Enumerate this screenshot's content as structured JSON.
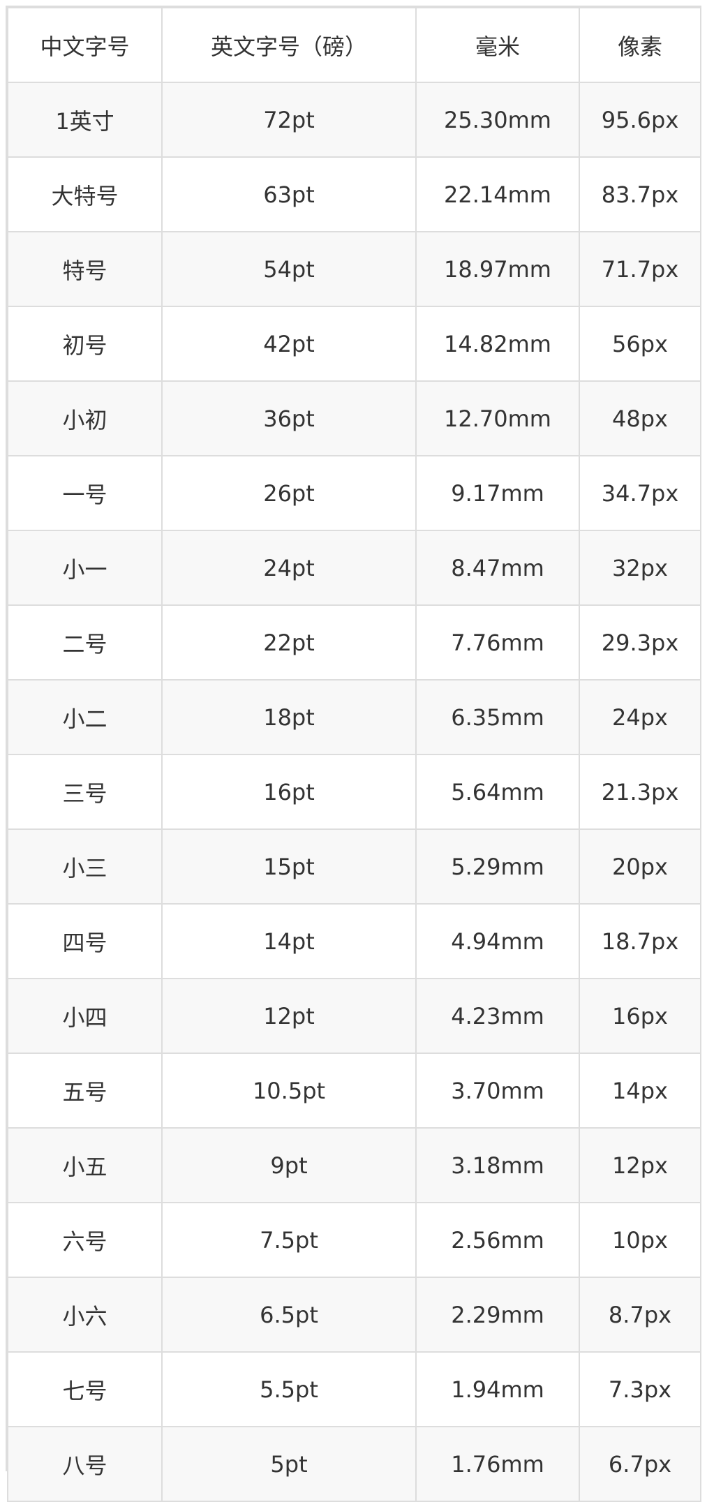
{
  "table": {
    "headers": [
      "中文字号",
      "英文字号（磅）",
      "毫米",
      "像素"
    ],
    "rows": [
      [
        "1英寸",
        "72pt",
        "25.30mm",
        "95.6px"
      ],
      [
        "大特号",
        "63pt",
        "22.14mm",
        "83.7px"
      ],
      [
        "特号",
        "54pt",
        "18.97mm",
        "71.7px"
      ],
      [
        "初号",
        "42pt",
        "14.82mm",
        "56px"
      ],
      [
        "小初",
        "36pt",
        "12.70mm",
        "48px"
      ],
      [
        "一号",
        "26pt",
        "9.17mm",
        "34.7px"
      ],
      [
        "小一",
        "24pt",
        "8.47mm",
        "32px"
      ],
      [
        "二号",
        "22pt",
        "7.76mm",
        "29.3px"
      ],
      [
        "小二",
        "18pt",
        "6.35mm",
        "24px"
      ],
      [
        "三号",
        "16pt",
        "5.64mm",
        "21.3px"
      ],
      [
        "小三",
        "15pt",
        "5.29mm",
        "20px"
      ],
      [
        "四号",
        "14pt",
        "4.94mm",
        "18.7px"
      ],
      [
        "小四",
        "12pt",
        "4.23mm",
        "16px"
      ],
      [
        "五号",
        "10.5pt",
        "3.70mm",
        "14px"
      ],
      [
        "小五",
        "9pt",
        "3.18mm",
        "12px"
      ],
      [
        "六号",
        "7.5pt",
        "2.56mm",
        "10px"
      ],
      [
        "小六",
        "6.5pt",
        "2.29mm",
        "8.7px"
      ],
      [
        "七号",
        "5.5pt",
        "1.94mm",
        "7.3px"
      ],
      [
        "八号",
        "5pt",
        "1.76mm",
        "6.7px"
      ]
    ]
  }
}
